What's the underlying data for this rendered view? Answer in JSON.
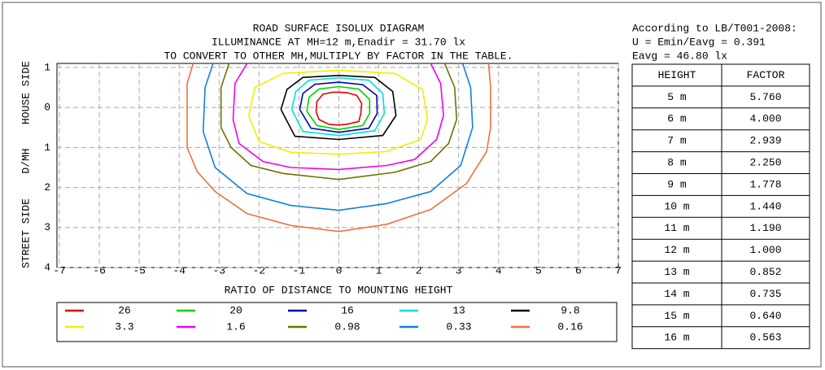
{
  "chart_data": {
    "type": "contour",
    "title": [
      "ROAD SURFACE ISOLUX DIAGRAM",
      "ILLUMINANCE AT MH=12 m,Enadir  = 31.70 lx",
      "TO CONVERT TO OTHER MH,MULTIPLY BY FACTOR IN THE TABLE."
    ],
    "x_label": "RATIO OF DISTANCE TO MOUNTING HEIGHT",
    "y_labels": [
      "STREET SIDE",
      "D/MH",
      "HOUSE SIDE"
    ],
    "xlim": [
      -7,
      7
    ],
    "xticks": [
      -7,
      -6,
      -5,
      -4,
      -3,
      -2,
      -1,
      0,
      1,
      2,
      3,
      4,
      5,
      6,
      7
    ],
    "ylim": [
      -1.1,
      4
    ],
    "y_inverted": true,
    "yticks": [
      {
        "value": -1,
        "label": "1"
      },
      0,
      1,
      2,
      3,
      4
    ],
    "grid": true,
    "series": [
      {
        "name": "26",
        "color": "#e00000",
        "x": [
          -0.57,
          -0.55,
          -0.4,
          -0.15,
          0,
          0.2,
          0.45,
          0.57,
          0.55,
          0.5,
          0.2,
          0,
          -0.25,
          -0.5,
          -0.57
        ],
        "y": [
          0.1,
          -0.15,
          -0.33,
          -0.38,
          -0.38,
          -0.37,
          -0.3,
          -0.1,
          0.15,
          0.35,
          0.42,
          0.44,
          0.42,
          0.3,
          0.1
        ]
      },
      {
        "name": "20",
        "color": "#00d000",
        "x": [
          -0.8,
          -0.75,
          -0.5,
          0,
          0.5,
          0.77,
          0.77,
          0.6,
          0,
          -0.55,
          -0.8
        ],
        "y": [
          0.1,
          -0.25,
          -0.46,
          -0.52,
          -0.46,
          -0.2,
          0.15,
          0.45,
          0.55,
          0.45,
          0.1
        ]
      },
      {
        "name": "16",
        "color": "#0000b0",
        "x": [
          -0.98,
          -0.9,
          -0.6,
          0,
          0.6,
          0.95,
          0.96,
          0.75,
          0,
          -0.7,
          -0.98
        ],
        "y": [
          0.05,
          -0.35,
          -0.58,
          -0.63,
          -0.57,
          -0.3,
          0.15,
          0.52,
          0.62,
          0.52,
          0.05
        ]
      },
      {
        "name": "13",
        "color": "#00e0e0",
        "x": [
          -1.18,
          -1.08,
          -0.75,
          0,
          0.75,
          1.1,
          1.14,
          0.9,
          0,
          -0.9,
          -1.18
        ],
        "y": [
          0.05,
          -0.4,
          -0.68,
          -0.74,
          -0.68,
          -0.35,
          0.15,
          0.58,
          0.7,
          0.6,
          0.05
        ]
      },
      {
        "name": "9.8",
        "color": "#000000",
        "x": [
          -1.45,
          -1.3,
          -0.9,
          0,
          0.9,
          1.35,
          1.43,
          1.1,
          0,
          -1.1,
          -1.45
        ],
        "y": [
          0.05,
          -0.45,
          -0.75,
          -0.8,
          -0.75,
          -0.4,
          0.2,
          0.7,
          0.8,
          0.72,
          0.05
        ]
      },
      {
        "name": "3.3",
        "color": "#f0f000",
        "x": [
          -2.26,
          -2.1,
          -1.4,
          0,
          1.4,
          2.1,
          2.22,
          2.05,
          1.2,
          0,
          -1.2,
          -2.0,
          -2.26
        ],
        "y": [
          0.2,
          -0.5,
          -0.85,
          -0.93,
          -0.85,
          -0.45,
          0.3,
          0.8,
          1.1,
          1.17,
          1.12,
          0.85,
          0.2
        ]
      },
      {
        "name": "1.6",
        "color": "#f000f0",
        "x": [
          -2.3,
          -2.6,
          -2.65,
          -2.5,
          -1.9,
          -1.2,
          0,
          1.2,
          1.9,
          2.45,
          2.62,
          2.55,
          2.3
        ],
        "y": [
          -1.1,
          -0.6,
          0.3,
          0.9,
          1.35,
          1.5,
          1.55,
          1.45,
          1.3,
          0.8,
          0.2,
          -0.6,
          -1.1
        ]
      },
      {
        "name": "0.98",
        "color": "#707000",
        "x": [
          -2.75,
          -2.95,
          -2.95,
          -2.7,
          -2.2,
          -1.4,
          0,
          1.4,
          2.3,
          2.75,
          2.95,
          2.9,
          2.65
        ],
        "y": [
          -1.1,
          -0.5,
          0.5,
          1.0,
          1.45,
          1.65,
          1.8,
          1.62,
          1.35,
          0.9,
          0.3,
          -0.5,
          -1.1
        ]
      },
      {
        "name": "0.33",
        "color": "#1080e0",
        "x": [
          -3.15,
          -3.35,
          -3.4,
          -3.1,
          -2.3,
          -1.2,
          0,
          1.2,
          2.3,
          3.05,
          3.35,
          3.3,
          3.1
        ],
        "y": [
          -1.1,
          -0.5,
          0.6,
          1.5,
          2.15,
          2.45,
          2.57,
          2.4,
          2.1,
          1.45,
          0.5,
          -0.5,
          -1.1
        ]
      },
      {
        "name": "0.16",
        "color": "#f07040",
        "x": [
          -3.65,
          -3.8,
          -3.8,
          -3.55,
          -3.1,
          -2.3,
          -1.2,
          0,
          1.2,
          2.3,
          3.2,
          3.7,
          3.8,
          3.8,
          3.75
        ],
        "y": [
          -1.1,
          -0.6,
          1.0,
          1.6,
          2.1,
          2.65,
          2.95,
          3.1,
          2.92,
          2.55,
          1.9,
          1.1,
          0.5,
          -0.5,
          -1.1
        ]
      }
    ]
  },
  "info": [
    "According to LB/T001-2008:",
    "U = Emin/Eavg = 0.391",
    "Eavg = 46.80 lx"
  ],
  "table": {
    "header": [
      "HEIGHT",
      "FACTOR"
    ],
    "rows": [
      [
        "5 m",
        "5.760"
      ],
      [
        "6 m",
        "4.000"
      ],
      [
        "7 m",
        "2.939"
      ],
      [
        "8 m",
        "2.250"
      ],
      [
        "9 m",
        "1.778"
      ],
      [
        "10 m",
        "1.440"
      ],
      [
        "11 m",
        "1.190"
      ],
      [
        "12 m",
        "1.000"
      ],
      [
        "13 m",
        "0.852"
      ],
      [
        "14 m",
        "0.735"
      ],
      [
        "15 m",
        "0.640"
      ],
      [
        "16 m",
        "0.563"
      ]
    ]
  }
}
